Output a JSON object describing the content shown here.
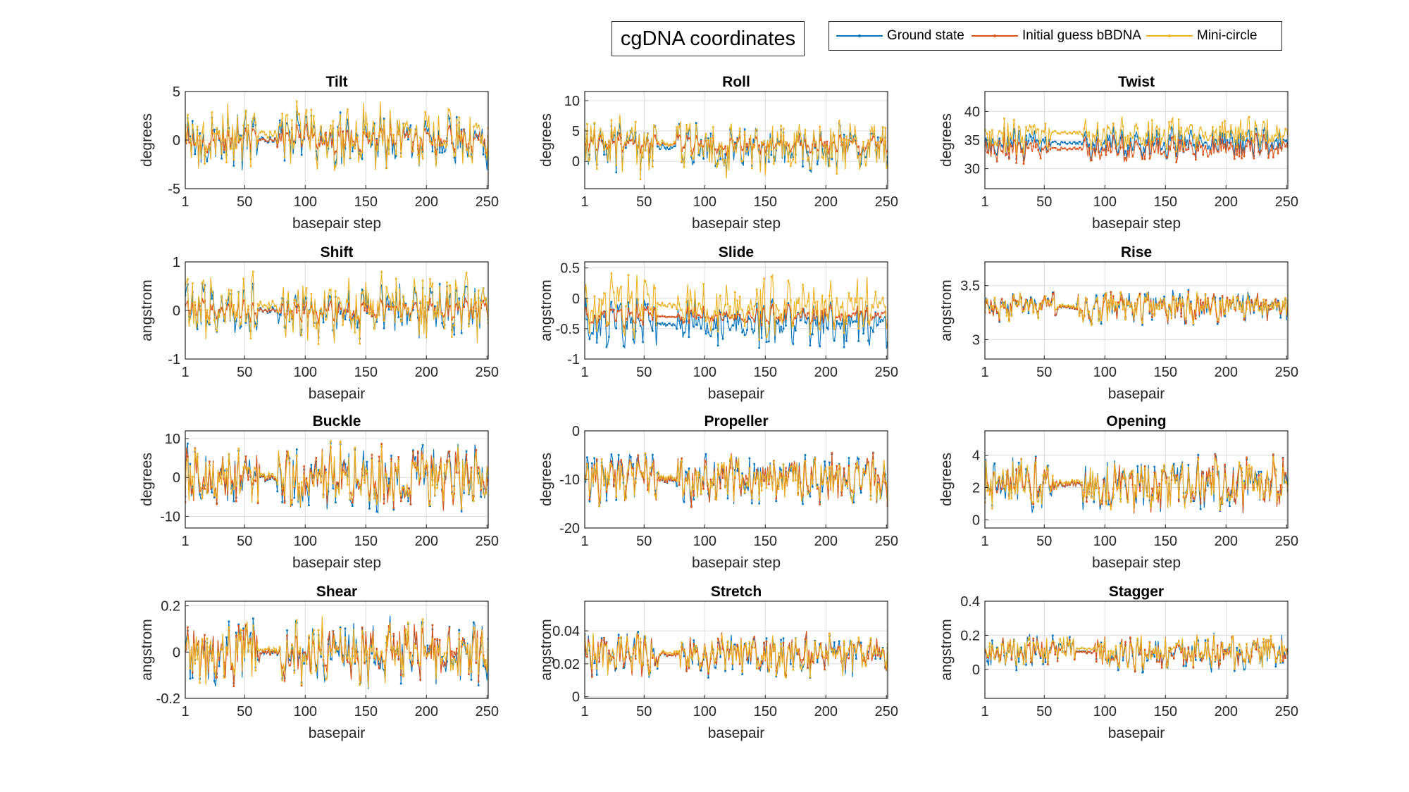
{
  "figure": {
    "title": "cgDNA coordinates",
    "legend": [
      {
        "name": "Ground state",
        "color": "#0072BD"
      },
      {
        "name": "Initial guess bBDNA",
        "color": "#D95319"
      },
      {
        "name": "Mini-circle",
        "color": "#EDB120"
      }
    ]
  },
  "chart_data": [
    {
      "type": "line",
      "title": "Tilt",
      "xlabel": "basepair step",
      "ylabel": "degrees",
      "xlim": [
        1,
        251
      ],
      "ylim": [
        -5,
        5
      ],
      "yticks": [
        -5,
        0,
        5
      ],
      "ytick_labels": [
        "-5",
        "0",
        "5"
      ],
      "xticks": [
        1,
        50,
        100,
        150,
        200,
        250
      ],
      "grid": true,
      "n": 251,
      "plateau": [
        60,
        75
      ],
      "series": [
        {
          "name": "Ground state",
          "center": 0.0,
          "amplitude": 2.4
        },
        {
          "name": "Initial guess bBDNA",
          "center": 0.0,
          "amplitude": 1.5
        },
        {
          "name": "Mini-circle",
          "center": 0.3,
          "amplitude": 3.2
        }
      ]
    },
    {
      "type": "line",
      "title": "Roll",
      "xlabel": "basepair step",
      "ylabel": "degrees",
      "xlim": [
        1,
        251
      ],
      "ylim": [
        -4.5,
        11.5
      ],
      "yticks": [
        0,
        5,
        10
      ],
      "ytick_labels": [
        "0",
        "5",
        "10"
      ],
      "xticks": [
        1,
        50,
        100,
        150,
        200,
        250
      ],
      "grid": true,
      "n": 251,
      "plateau": [
        60,
        75
      ],
      "series": [
        {
          "name": "Ground state",
          "center": 2.3,
          "amplitude": 3.2
        },
        {
          "name": "Initial guess bBDNA",
          "center": 2.8,
          "amplitude": 1.6
        },
        {
          "name": "Mini-circle",
          "center": 2.5,
          "amplitude": 4.5
        }
      ]
    },
    {
      "type": "line",
      "title": "Twist",
      "xlabel": "basepair step",
      "ylabel": "degrees",
      "xlim": [
        1,
        251
      ],
      "ylim": [
        26.5,
        43.5
      ],
      "yticks": [
        30,
        35,
        40
      ],
      "ytick_labels": [
        "30",
        "35",
        "40"
      ],
      "xticks": [
        1,
        50,
        100,
        150,
        200,
        250
      ],
      "grid": true,
      "n": 251,
      "plateau": [
        55,
        80
      ],
      "series": [
        {
          "name": "Ground state",
          "center": 34.5,
          "amplitude": 2.3
        },
        {
          "name": "Initial guess bBDNA",
          "center": 33.5,
          "amplitude": 2.2
        },
        {
          "name": "Mini-circle",
          "center": 36.0,
          "amplitude": 2.8
        }
      ]
    },
    {
      "type": "line",
      "title": "Shift",
      "xlabel": "basepair",
      "ylabel": "angstrom",
      "xlim": [
        1,
        251
      ],
      "ylim": [
        -1,
        1
      ],
      "yticks": [
        -1,
        0,
        1
      ],
      "ytick_labels": [
        "-1",
        "0",
        "1"
      ],
      "xticks": [
        1,
        50,
        100,
        150,
        200,
        250
      ],
      "grid": true,
      "n": 251,
      "plateau": [
        60,
        75
      ],
      "series": [
        {
          "name": "Ground state",
          "center": 0.0,
          "amplitude": 0.45
        },
        {
          "name": "Initial guess bBDNA",
          "center": 0.0,
          "amplitude": 0.22
        },
        {
          "name": "Mini-circle",
          "center": 0.05,
          "amplitude": 0.6
        }
      ]
    },
    {
      "type": "line",
      "title": "Slide",
      "xlabel": "basepair",
      "ylabel": "angstrom",
      "xlim": [
        1,
        251
      ],
      "ylim": [
        -1.0,
        0.6
      ],
      "yticks": [
        -1,
        -0.5,
        0,
        0.5
      ],
      "ytick_labels": [
        "-1",
        "-0.5",
        "0",
        "0.5"
      ],
      "xticks": [
        1,
        50,
        100,
        150,
        200,
        250
      ],
      "grid": true,
      "n": 251,
      "plateau": [
        60,
        75
      ],
      "series": [
        {
          "name": "Ground state",
          "center": -0.42,
          "amplitude": 0.32
        },
        {
          "name": "Initial guess bBDNA",
          "center": -0.3,
          "amplitude": 0.16
        },
        {
          "name": "Mini-circle",
          "center": -0.15,
          "amplitude": 0.45
        }
      ]
    },
    {
      "type": "line",
      "title": "Rise",
      "xlabel": "basepair",
      "ylabel": "angstrom",
      "xlim": [
        1,
        251
      ],
      "ylim": [
        2.82,
        3.72
      ],
      "yticks": [
        3,
        3.5
      ],
      "ytick_labels": [
        "3",
        "3.5"
      ],
      "xticks": [
        1,
        50,
        100,
        150,
        200,
        250
      ],
      "grid": true,
      "n": 251,
      "plateau": [
        60,
        75
      ],
      "series": [
        {
          "name": "Ground state",
          "center": 3.3,
          "amplitude": 0.13
        },
        {
          "name": "Initial guess bBDNA",
          "center": 3.3,
          "amplitude": 0.13
        },
        {
          "name": "Mini-circle",
          "center": 3.3,
          "amplitude": 0.13
        }
      ]
    },
    {
      "type": "line",
      "title": "Buckle",
      "xlabel": "basepair step",
      "ylabel": "degrees",
      "xlim": [
        1,
        251
      ],
      "ylim": [
        -13,
        12
      ],
      "yticks": [
        -10,
        0,
        10
      ],
      "ytick_labels": [
        "-10",
        "0",
        "10"
      ],
      "xticks": [
        1,
        50,
        100,
        150,
        200,
        250
      ],
      "grid": true,
      "n": 251,
      "plateau": [
        62,
        75
      ],
      "series": [
        {
          "name": "Ground state",
          "center": 0.0,
          "amplitude": 7.0
        },
        {
          "name": "Initial guess bBDNA",
          "center": 0.0,
          "amplitude": 7.0
        },
        {
          "name": "Mini-circle",
          "center": 0.0,
          "amplitude": 7.0
        }
      ]
    },
    {
      "type": "line",
      "title": "Propeller",
      "xlabel": "basepair step",
      "ylabel": "degrees",
      "xlim": [
        1,
        251
      ],
      "ylim": [
        -20,
        0
      ],
      "yticks": [
        -20,
        -10,
        0
      ],
      "ytick_labels": [
        "-20",
        "-10",
        "0"
      ],
      "xticks": [
        1,
        50,
        100,
        150,
        200,
        250
      ],
      "grid": true,
      "n": 251,
      "plateau": [
        62,
        75
      ],
      "series": [
        {
          "name": "Ground state",
          "center": -10.0,
          "amplitude": 4.5
        },
        {
          "name": "Initial guess bBDNA",
          "center": -10.0,
          "amplitude": 4.5
        },
        {
          "name": "Mini-circle",
          "center": -10.0,
          "amplitude": 4.5
        }
      ]
    },
    {
      "type": "line",
      "title": "Opening",
      "xlabel": "basepair step",
      "ylabel": "degrees",
      "xlim": [
        1,
        251
      ],
      "ylim": [
        -0.5,
        5.5
      ],
      "yticks": [
        0,
        2,
        4
      ],
      "ytick_labels": [
        "0",
        "2",
        "4"
      ],
      "xticks": [
        1,
        50,
        100,
        150,
        200,
        250
      ],
      "grid": true,
      "n": 251,
      "plateau": [
        60,
        80
      ],
      "series": [
        {
          "name": "Ground state",
          "center": 2.2,
          "amplitude": 1.4
        },
        {
          "name": "Initial guess bBDNA",
          "center": 2.2,
          "amplitude": 1.4
        },
        {
          "name": "Mini-circle",
          "center": 2.2,
          "amplitude": 1.4
        }
      ]
    },
    {
      "type": "line",
      "title": "Shear",
      "xlabel": "basepair",
      "ylabel": "angstrom",
      "xlim": [
        1,
        251
      ],
      "ylim": [
        -0.2,
        0.22
      ],
      "yticks": [
        -0.2,
        0,
        0.2
      ],
      "ytick_labels": [
        "-0.2",
        "0",
        "0.2"
      ],
      "xticks": [
        1,
        50,
        100,
        150,
        200,
        250
      ],
      "grid": true,
      "n": 251,
      "plateau": [
        62,
        78
      ],
      "series": [
        {
          "name": "Ground state",
          "center": 0.0,
          "amplitude": 0.12
        },
        {
          "name": "Initial guess bBDNA",
          "center": 0.0,
          "amplitude": 0.12
        },
        {
          "name": "Mini-circle",
          "center": 0.0,
          "amplitude": 0.12
        }
      ]
    },
    {
      "type": "line",
      "title": "Stretch",
      "xlabel": "basepair",
      "ylabel": "angstrom",
      "xlim": [
        1,
        251
      ],
      "ylim": [
        -0.001,
        0.058
      ],
      "yticks": [
        0,
        0.02,
        0.04
      ],
      "ytick_labels": [
        "0",
        "0.02",
        "0.04"
      ],
      "xticks": [
        1,
        50,
        100,
        150,
        200,
        250
      ],
      "grid": true,
      "n": 251,
      "plateau": [
        62,
        78
      ],
      "series": [
        {
          "name": "Ground state",
          "center": 0.026,
          "amplitude": 0.011
        },
        {
          "name": "Initial guess bBDNA",
          "center": 0.026,
          "amplitude": 0.011
        },
        {
          "name": "Mini-circle",
          "center": 0.026,
          "amplitude": 0.011
        }
      ]
    },
    {
      "type": "line",
      "title": "Stagger",
      "xlabel": "basepair",
      "ylabel": "angstrom",
      "xlim": [
        1,
        251
      ],
      "ylim": [
        -0.17,
        0.4
      ],
      "yticks": [
        0,
        0.2,
        0.4
      ],
      "ytick_labels": [
        "0",
        "0.2",
        "0.4"
      ],
      "xticks": [
        1,
        50,
        100,
        150,
        200,
        250
      ],
      "grid": true,
      "n": 251,
      "plateau": [
        75,
        90
      ],
      "series": [
        {
          "name": "Ground state",
          "center": 0.1,
          "amplitude": 0.09
        },
        {
          "name": "Initial guess bBDNA",
          "center": 0.1,
          "amplitude": 0.09
        },
        {
          "name": "Mini-circle",
          "center": 0.11,
          "amplitude": 0.09
        }
      ]
    }
  ]
}
